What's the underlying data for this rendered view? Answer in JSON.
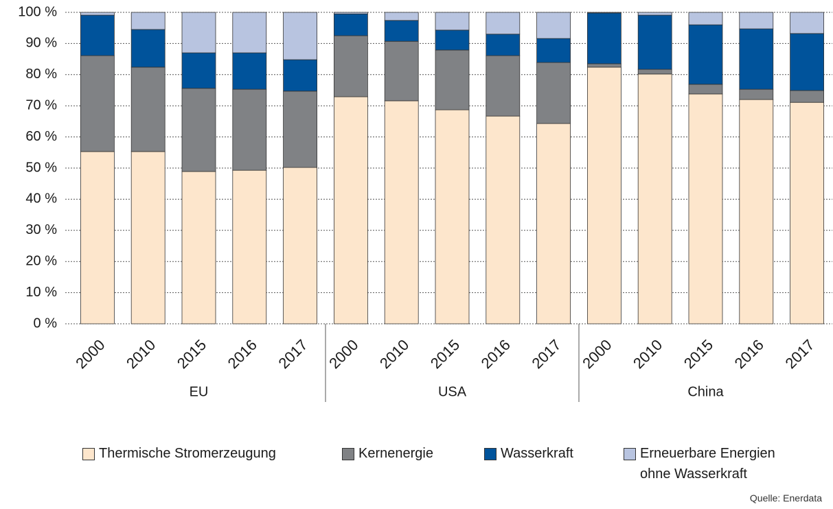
{
  "chart_data": {
    "type": "stacked-bar",
    "groups": [
      {
        "name": "EU",
        "categories": [
          "2000",
          "2010",
          "2015",
          "2016",
          "2017"
        ]
      },
      {
        "name": "USA",
        "categories": [
          "2000",
          "2010",
          "2015",
          "2016",
          "2017"
        ]
      },
      {
        "name": "China",
        "categories": [
          "2000",
          "2010",
          "2015",
          "2016",
          "2017"
        ]
      }
    ],
    "series": [
      {
        "name": "Thermische Stromerzeugung",
        "color": "#fde6cc",
        "values": [
          55.3,
          55.3,
          48.9,
          49.3,
          50.2,
          72.9,
          71.6,
          68.7,
          66.7,
          64.3,
          82.4,
          80.2,
          73.8,
          72.0,
          71.1
        ]
      },
      {
        "name": "Kernenergie",
        "color": "#808285",
        "values": [
          30.8,
          27.1,
          26.7,
          26.0,
          24.5,
          19.6,
          19.1,
          19.2,
          19.4,
          19.6,
          1.1,
          1.5,
          3.1,
          3.3,
          3.8
        ]
      },
      {
        "name": "Wasserkraft",
        "color": "#00539b",
        "values": [
          13.0,
          12.1,
          11.4,
          11.7,
          10.1,
          7.0,
          6.7,
          6.4,
          6.9,
          7.7,
          16.3,
          17.4,
          19.1,
          19.4,
          18.3
        ]
      },
      {
        "name": "Erneuerbare Energien ohne Wasserkraft",
        "color": "#b8c4e0",
        "values": [
          0.9,
          5.5,
          13.0,
          13.0,
          15.2,
          0.5,
          2.6,
          5.7,
          7.0,
          8.4,
          0.2,
          0.9,
          4.0,
          5.3,
          6.8
        ]
      }
    ],
    "ylim": [
      0,
      100
    ],
    "yticks": [
      {
        "value": 0,
        "label": "0 %"
      },
      {
        "value": 10,
        "label": "10 %"
      },
      {
        "value": 20,
        "label": "20 %"
      },
      {
        "value": 30,
        "label": "30 %"
      },
      {
        "value": 40,
        "label": "40 %"
      },
      {
        "value": 50,
        "label": "50 %"
      },
      {
        "value": 60,
        "label": "60 %"
      },
      {
        "value": 70,
        "label": "70 %"
      },
      {
        "value": 80,
        "label": "80 %"
      },
      {
        "value": 90,
        "label": "90 %"
      },
      {
        "value": 100,
        "label": "100 %"
      }
    ],
    "grid": true,
    "source": "Quelle: Enerdata"
  }
}
